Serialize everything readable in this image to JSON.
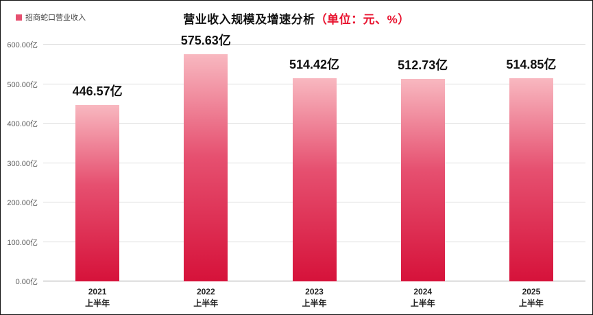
{
  "chart_data": {
    "type": "bar",
    "title": "营业收入规模及增速分析",
    "title_unit": "（单位：元、%）",
    "legend": "招商蛇口营业收入",
    "categories": [
      [
        "2021",
        "上半年"
      ],
      [
        "2022",
        "上半年"
      ],
      [
        "2023",
        "上半年"
      ],
      [
        "2024",
        "上半年"
      ],
      [
        "2025",
        "上半年"
      ]
    ],
    "values": [
      446.57,
      575.63,
      514.42,
      512.73,
      514.85
    ],
    "value_labels": [
      "446.57亿",
      "575.63亿",
      "514.42亿",
      "512.73亿",
      "514.85亿"
    ],
    "y_ticks": [
      0,
      100,
      200,
      300,
      400,
      500,
      600
    ],
    "y_tick_labels": [
      "0.00亿",
      "100.00亿",
      "200.00亿",
      "300.00亿",
      "400.00亿",
      "500.00亿",
      "600.00亿"
    ],
    "ylim": [
      0,
      600
    ],
    "grid": true,
    "legend_position": "top-left",
    "xlabel": "",
    "ylabel": "",
    "colors": {
      "bar_top": "#F8B8C0",
      "bar_mid": "#E65070",
      "bar_bottom": "#D6123A",
      "title_unit": "#E8132F",
      "grid": "#DCDCDC",
      "axis": "#9B9B9B"
    }
  }
}
